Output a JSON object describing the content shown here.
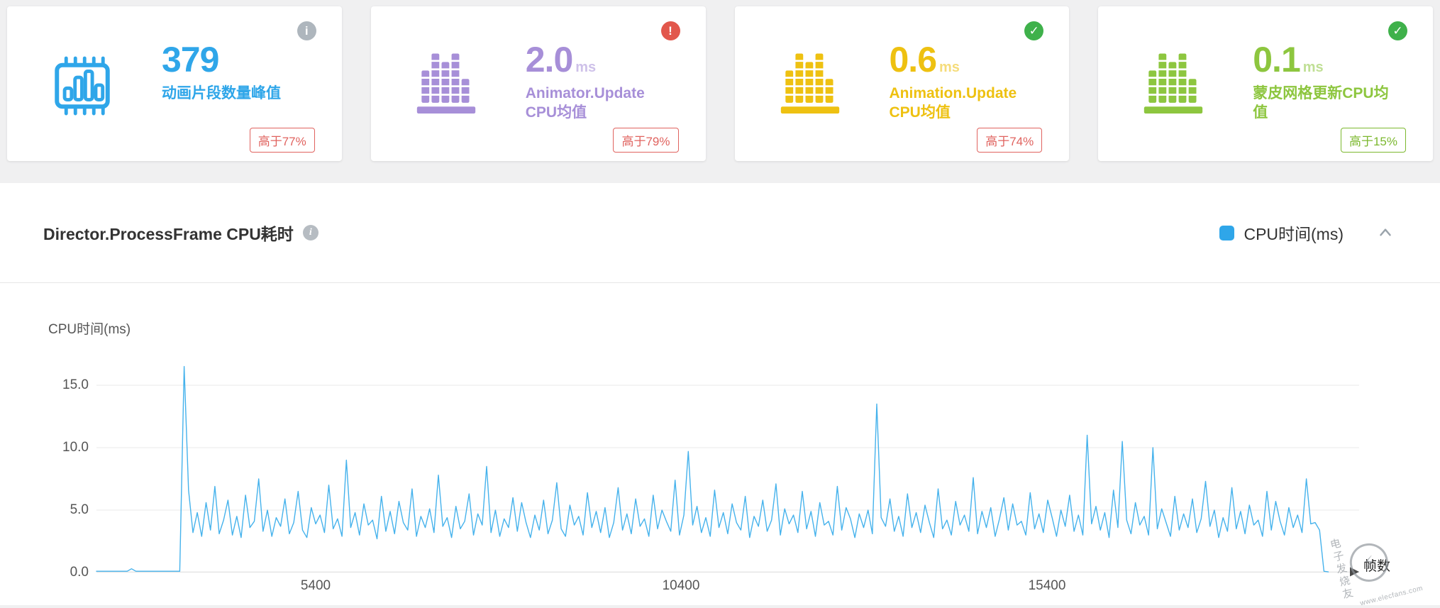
{
  "cards": [
    {
      "value": "379",
      "unit": "",
      "label": "动画片段数量峰值",
      "color": "#2fa6e9",
      "status_glyph": "i",
      "status_bg": "#aeb6bd",
      "badge_text": "高于77%",
      "badge_color": "#e0635f"
    },
    {
      "value": "2.0",
      "unit": "ms",
      "label": "Animator.Update CPU均值",
      "color": "#a78fd8",
      "status_glyph": "!",
      "status_bg": "#e2574c",
      "badge_text": "高于79%",
      "badge_color": "#e0635f"
    },
    {
      "value": "0.6",
      "unit": "ms",
      "label": "Animation.Update CPU均值",
      "color": "#eec111",
      "status_glyph": "✓",
      "status_bg": "#3fb14b",
      "badge_text": "高于74%",
      "badge_color": "#e0635f"
    },
    {
      "value": "0.1",
      "unit": "ms",
      "label": "蒙皮网格更新CPU均值",
      "color": "#8dc63f",
      "status_glyph": "✓",
      "status_bg": "#3fb14b",
      "badge_text": "高于15%",
      "badge_color": "#7cb82f"
    }
  ],
  "panel": {
    "title": "Director.ProcessFrame CPU耗时",
    "info_glyph": "i",
    "legend_label": "CPU时间(ms)",
    "legend_color": "#2fa6e9"
  },
  "chart_data": {
    "type": "line",
    "title": "Director.ProcessFrame CPU耗时",
    "series_name": "CPU时间(ms)",
    "ylabel": "CPU时间(ms)",
    "xlabel": "帧数",
    "line_color": "#45b2ec",
    "grid": true,
    "legend_position": "top-right",
    "xlim": [
      2400,
      19682
    ],
    "ylim": [
      0,
      17.5
    ],
    "x_start": 2400,
    "x_step": 60,
    "y_ticks": [
      {
        "value": 15,
        "label": "15.0"
      },
      {
        "value": 10,
        "label": "10.0"
      },
      {
        "value": 5,
        "label": "5.0"
      },
      {
        "value": 0,
        "label": "0.0"
      }
    ],
    "x_ticks": [
      {
        "value": 5400,
        "label": "5400"
      },
      {
        "value": 10400,
        "label": "10400"
      },
      {
        "value": 15400,
        "label": "15400"
      }
    ],
    "y_values": [
      0.1,
      0.1,
      0.1,
      0.1,
      0.1,
      0.1,
      0.1,
      0.1,
      0.3,
      0.1,
      0.1,
      0.1,
      0.1,
      0.1,
      0.1,
      0.1,
      0.1,
      0.1,
      0.1,
      0.1,
      16.5,
      6.6,
      3.2,
      4.8,
      2.9,
      5.6,
      3.4,
      6.9,
      3.1,
      4.2,
      5.8,
      3.0,
      4.5,
      2.8,
      6.2,
      3.6,
      4.1,
      7.5,
      3.3,
      5.0,
      2.9,
      4.4,
      3.7,
      5.9,
      3.1,
      4.0,
      6.5,
      3.4,
      2.8,
      5.2,
      3.9,
      4.6,
      3.2,
      7.0,
      3.5,
      4.3,
      2.9,
      9.0,
      3.6,
      4.8,
      3.0,
      5.5,
      3.8,
      4.2,
      2.7,
      6.1,
      3.3,
      4.9,
      3.1,
      5.7,
      4.0,
      3.4,
      6.7,
      2.9,
      4.5,
      3.6,
      5.1,
      3.2,
      7.8,
      3.7,
      4.4,
      2.8,
      5.3,
      3.5,
      4.1,
      6.3,
      3.0,
      4.7,
      3.8,
      8.5,
      3.2,
      5.0,
      2.9,
      4.3,
      3.6,
      6.0,
      3.3,
      5.6,
      4.0,
      2.8,
      4.6,
      3.4,
      5.8,
      3.1,
      4.2,
      7.2,
      3.5,
      2.9,
      5.4,
      3.8,
      4.5,
      3.0,
      6.4,
      3.6,
      4.9,
      3.2,
      5.2,
      2.8,
      4.0,
      6.8,
      3.4,
      4.7,
      3.1,
      5.9,
      3.7,
      4.3,
      2.9,
      6.2,
      3.5,
      5.0,
      4.1,
      3.3,
      7.4,
      3.0,
      4.6,
      9.7,
      3.8,
      5.3,
      3.2,
      4.4,
      2.9,
      6.6,
      3.6,
      4.8,
      3.1,
      5.5,
      4.0,
      3.4,
      6.1,
      2.8,
      4.5,
      3.7,
      5.8,
      3.3,
      4.2,
      7.1,
      3.0,
      5.1,
      3.9,
      4.6,
      3.2,
      6.5,
      3.5,
      4.9,
      2.9,
      5.6,
      3.8,
      4.1,
      3.0,
      6.9,
      3.4,
      5.2,
      4.3,
      2.8,
      4.7,
      3.6,
      5.0,
      3.1,
      13.5,
      4.4,
      3.7,
      5.9,
      3.3,
      4.5,
      2.9,
      6.3,
      3.6,
      4.8,
      3.2,
      5.4,
      4.0,
      2.8,
      6.7,
      3.5,
      4.2,
      3.0,
      5.7,
      3.8,
      4.6,
      3.3,
      7.6,
      3.1,
      4.9,
      3.6,
      5.2,
      2.9,
      4.3,
      6.0,
      3.4,
      5.5,
      3.8,
      4.1,
      3.0,
      6.4,
      3.5,
      4.7,
      3.2,
      5.8,
      4.4,
      2.9,
      5.0,
      3.7,
      6.2,
      3.3,
      4.6,
      3.0,
      11.0,
      3.9,
      5.3,
      3.4,
      4.8,
      2.8,
      6.6,
      3.6,
      10.5,
      4.2,
      3.1,
      5.6,
      3.8,
      4.5,
      3.0,
      10.0,
      3.5,
      5.1,
      4.0,
      2.9,
      6.1,
      3.4,
      4.7,
      3.6,
      5.9,
      3.2,
      4.3,
      7.3,
      3.7,
      5.0,
      2.8,
      4.4,
      3.3,
      6.8,
      3.5,
      4.9,
      3.1,
      5.4,
      3.8,
      4.2,
      2.9,
      6.5,
      3.4,
      5.7,
      4.1,
      3.0,
      5.2,
      3.6,
      4.6,
      3.2,
      7.5,
      3.9,
      4.0,
      3.4,
      0.1,
      0.05
    ]
  },
  "watermark": {
    "site_name": "电子发烧友",
    "site_url": "www.elecfans.com",
    "logo_glyph": "⚡"
  }
}
